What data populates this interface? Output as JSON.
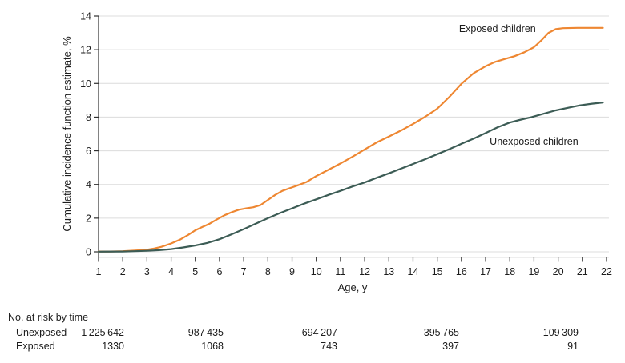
{
  "figure": {
    "colors": {
      "exposed": "#EE8732",
      "unexposed": "#3C5C55",
      "grid": "#DCDCDC",
      "axis": "#2F2F2F",
      "text": "#1C1C1C"
    }
  },
  "chart_data": {
    "type": "line",
    "title": "",
    "xlabel": "Age, y",
    "ylabel": "Cumulative incidence function estimate, %",
    "xlim": [
      1,
      22
    ],
    "ylim": [
      0,
      14
    ],
    "x_ticks": [
      1,
      2,
      3,
      4,
      5,
      6,
      7,
      8,
      9,
      10,
      11,
      12,
      13,
      14,
      15,
      16,
      17,
      18,
      19,
      20,
      21,
      22
    ],
    "y_ticks": [
      0,
      2,
      4,
      6,
      8,
      10,
      12,
      14
    ],
    "grid": "horizontal",
    "legend_position": "inline-annotations",
    "series": [
      {
        "id": "exposed",
        "name": "Exposed children",
        "color": "#EE8732",
        "label_at": {
          "age": 15.9,
          "pct": 13.05
        },
        "points": [
          [
            1,
            0.02
          ],
          [
            1.5,
            0.02
          ],
          [
            2,
            0.04
          ],
          [
            2.5,
            0.08
          ],
          [
            3,
            0.13
          ],
          [
            3.3,
            0.2
          ],
          [
            3.6,
            0.3
          ],
          [
            4,
            0.5
          ],
          [
            4.4,
            0.75
          ],
          [
            4.7,
            1.0
          ],
          [
            5,
            1.28
          ],
          [
            5.3,
            1.48
          ],
          [
            5.6,
            1.68
          ],
          [
            5.9,
            1.93
          ],
          [
            6.2,
            2.17
          ],
          [
            6.5,
            2.35
          ],
          [
            6.8,
            2.5
          ],
          [
            7.1,
            2.58
          ],
          [
            7.4,
            2.65
          ],
          [
            7.7,
            2.78
          ],
          [
            8,
            3.08
          ],
          [
            8.3,
            3.38
          ],
          [
            8.6,
            3.62
          ],
          [
            8.9,
            3.78
          ],
          [
            9.2,
            3.93
          ],
          [
            9.6,
            4.15
          ],
          [
            10,
            4.5
          ],
          [
            10.5,
            4.87
          ],
          [
            11,
            5.25
          ],
          [
            11.5,
            5.65
          ],
          [
            12,
            6.08
          ],
          [
            12.5,
            6.5
          ],
          [
            13,
            6.85
          ],
          [
            13.5,
            7.2
          ],
          [
            14,
            7.6
          ],
          [
            14.5,
            8.02
          ],
          [
            15,
            8.5
          ],
          [
            15.5,
            9.2
          ],
          [
            16,
            9.98
          ],
          [
            16.5,
            10.6
          ],
          [
            17,
            11.02
          ],
          [
            17.4,
            11.28
          ],
          [
            17.8,
            11.45
          ],
          [
            18.2,
            11.62
          ],
          [
            18.6,
            11.85
          ],
          [
            19,
            12.15
          ],
          [
            19.3,
            12.55
          ],
          [
            19.6,
            13.0
          ],
          [
            19.9,
            13.22
          ],
          [
            20.2,
            13.28
          ],
          [
            20.8,
            13.3
          ],
          [
            21.4,
            13.3
          ],
          [
            21.85,
            13.3
          ]
        ]
      },
      {
        "id": "unexposed",
        "name": "Unexposed children",
        "color": "#3C5C55",
        "label_at": {
          "age": 17.17,
          "pct": 6.36
        },
        "points": [
          [
            1,
            0.01
          ],
          [
            2,
            0.02
          ],
          [
            2.5,
            0.04
          ],
          [
            3,
            0.06
          ],
          [
            3.5,
            0.1
          ],
          [
            4,
            0.16
          ],
          [
            4.5,
            0.26
          ],
          [
            5,
            0.38
          ],
          [
            5.5,
            0.53
          ],
          [
            6,
            0.75
          ],
          [
            6.5,
            1.04
          ],
          [
            7,
            1.35
          ],
          [
            7.5,
            1.67
          ],
          [
            8,
            2.0
          ],
          [
            8.5,
            2.3
          ],
          [
            9,
            2.58
          ],
          [
            9.5,
            2.86
          ],
          [
            10,
            3.12
          ],
          [
            10.5,
            3.38
          ],
          [
            11,
            3.62
          ],
          [
            11.5,
            3.88
          ],
          [
            12,
            4.12
          ],
          [
            12.5,
            4.4
          ],
          [
            13,
            4.66
          ],
          [
            13.5,
            4.94
          ],
          [
            14,
            5.22
          ],
          [
            14.5,
            5.5
          ],
          [
            15,
            5.8
          ],
          [
            15.5,
            6.1
          ],
          [
            16,
            6.42
          ],
          [
            16.5,
            6.72
          ],
          [
            17,
            7.05
          ],
          [
            17.5,
            7.4
          ],
          [
            18,
            7.68
          ],
          [
            18.4,
            7.83
          ],
          [
            18.9,
            8.0
          ],
          [
            19.4,
            8.2
          ],
          [
            19.9,
            8.4
          ],
          [
            20.4,
            8.55
          ],
          [
            20.9,
            8.7
          ],
          [
            21.4,
            8.8
          ],
          [
            21.85,
            8.87
          ]
        ]
      }
    ]
  },
  "risk_table": {
    "title": "No. at risk by time",
    "value_ages": [
      1,
      5,
      10,
      15,
      20
    ],
    "rows": [
      {
        "label": "Unexposed",
        "values": [
          "1 225 642",
          "987 435",
          "694 207",
          "395 765",
          "109 309"
        ]
      },
      {
        "label": "Exposed",
        "values": [
          "1330",
          "1068",
          "743",
          "397",
          "91"
        ]
      }
    ]
  }
}
